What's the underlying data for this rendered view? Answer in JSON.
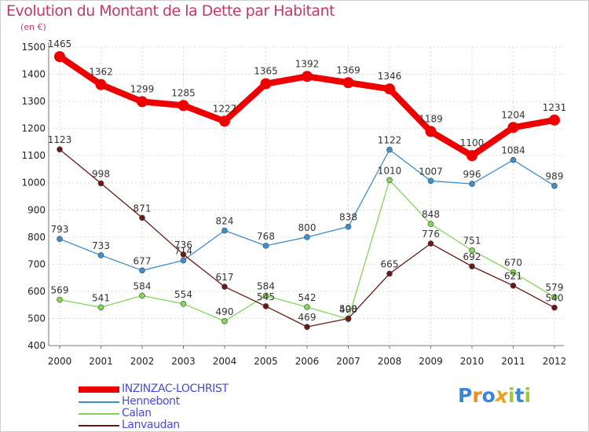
{
  "title": "Evolution du Montant de la Dette par Habitant",
  "subtitle": "(en €)",
  "chart_data": {
    "type": "line",
    "title": "Evolution du Montant de la Dette par Habitant",
    "subtitle": "(en €)",
    "x": [
      "2000",
      "2001",
      "2002",
      "2003",
      "2004",
      "2005",
      "2006",
      "2007",
      "2008",
      "2009",
      "2010",
      "2011",
      "2012"
    ],
    "ylim": [
      400,
      1500
    ],
    "yticks": [
      400,
      500,
      600,
      700,
      800,
      900,
      1000,
      1100,
      1200,
      1300,
      1400,
      1500
    ],
    "grid": true,
    "legend_position": "bottom-left",
    "series": [
      {
        "name": "INZINZAC-LOCHRIST",
        "color": "#ee0000",
        "values": [
          1465,
          1362,
          1299,
          1285,
          1227,
          1365,
          1392,
          1369,
          1346,
          1189,
          1100,
          1204,
          1231
        ]
      },
      {
        "name": "Hennebont",
        "color": "#3d8fce",
        "values": [
          793,
          733,
          677,
          714,
          824,
          768,
          800,
          838,
          1122,
          1007,
          996,
          1084,
          989
        ]
      },
      {
        "name": "Calan",
        "color": "#86d45a",
        "values": [
          569,
          541,
          584,
          554,
          490,
          584,
          542,
          498,
          1010,
          848,
          751,
          670,
          579
        ]
      },
      {
        "name": "Lanvaudan",
        "color": "#6a1818",
        "values": [
          1123,
          998,
          871,
          736,
          617,
          545,
          469,
          500,
          665,
          776,
          692,
          621,
          540
        ]
      }
    ]
  },
  "logo": {
    "letters": [
      "P",
      "r",
      "o",
      "x",
      "i",
      "t",
      "i"
    ],
    "colors": [
      "#3a86d8",
      "#f08c1c",
      "#3a86d8",
      "#e8a21a",
      "#9acd32",
      "#3a86d8",
      "#9acd32"
    ]
  }
}
